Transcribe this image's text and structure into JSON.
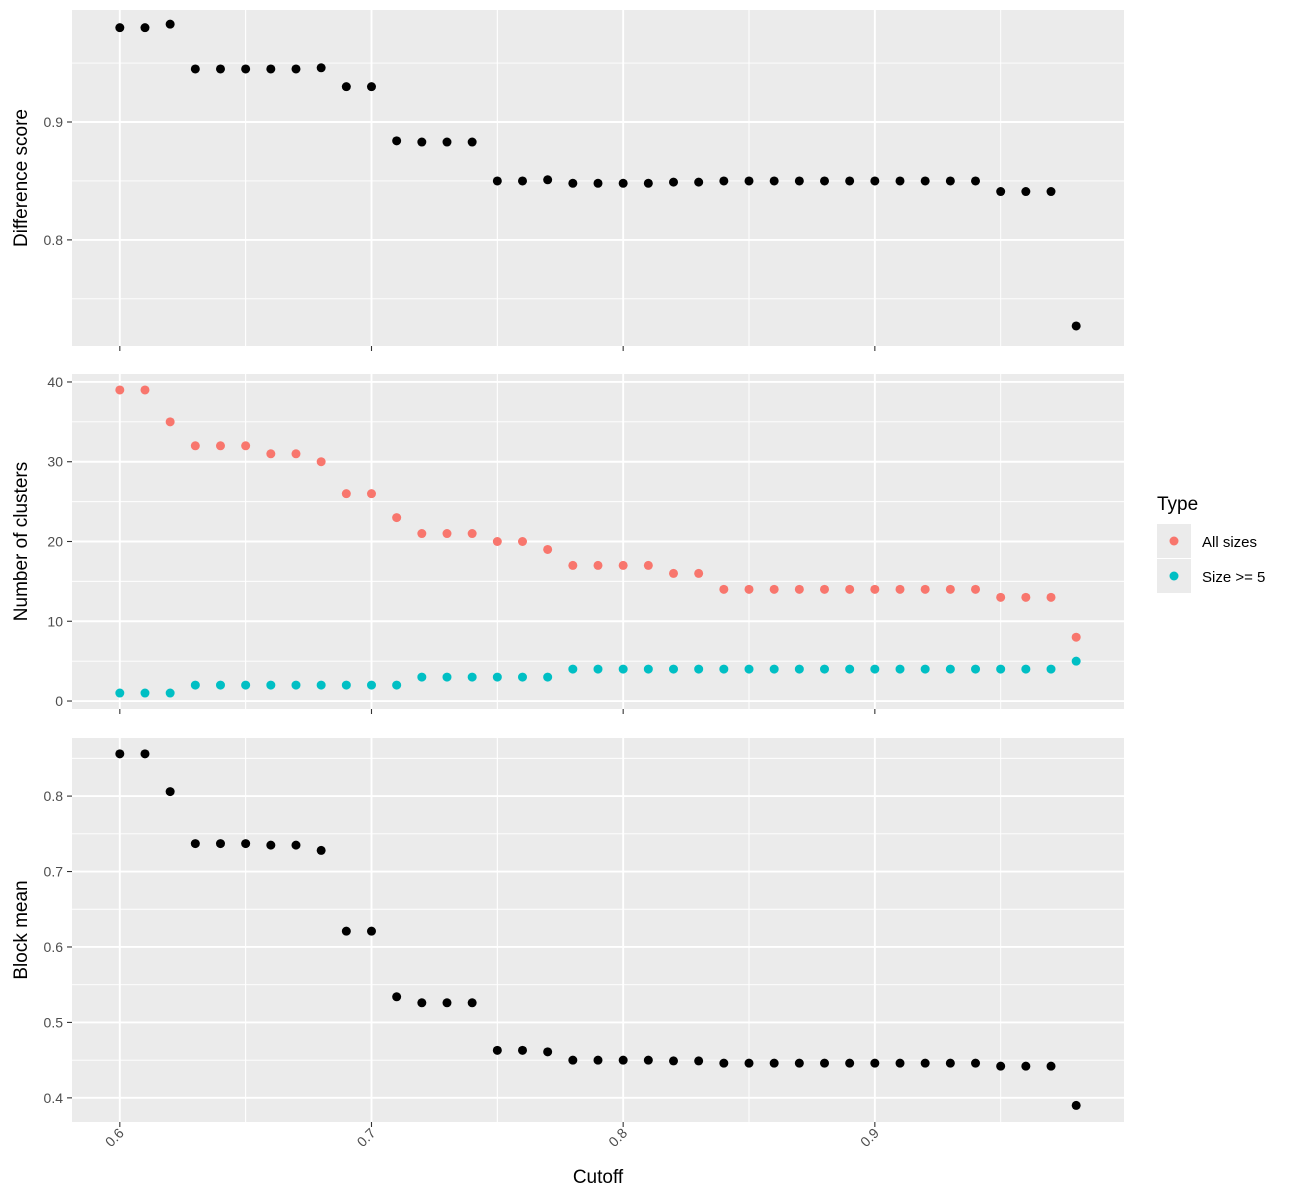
{
  "chart_data": {
    "type": "scatter",
    "x_axis": {
      "label": "Cutoff",
      "ticks": [
        0.6,
        0.7,
        0.8,
        0.9
      ],
      "tick_labels": [
        "0.6",
        "0.7",
        "0.8",
        "0.9"
      ],
      "range": [
        0.581,
        0.999
      ],
      "tick_label_rotation": "45 degrees"
    },
    "x": [
      0.6,
      0.61,
      0.62,
      0.63,
      0.64,
      0.65,
      0.66,
      0.67,
      0.68,
      0.69,
      0.7,
      0.71,
      0.72,
      0.73,
      0.74,
      0.75,
      0.76,
      0.77,
      0.78,
      0.79,
      0.8,
      0.81,
      0.82,
      0.83,
      0.84,
      0.85,
      0.86,
      0.87,
      0.88,
      0.89,
      0.9,
      0.91,
      0.92,
      0.93,
      0.94,
      0.95,
      0.96,
      0.97,
      0.98
    ],
    "grid": true,
    "background_color": "#ebebeb",
    "panels": [
      {
        "ylabel": "Difference score",
        "ylim": [
          0.71,
          0.995
        ],
        "y_ticks": [
          0.8,
          0.9
        ],
        "y_tick_labels": [
          "0.8",
          "0.9"
        ],
        "series": [
          {
            "color": "#000000",
            "values": [
              0.98,
              0.98,
              0.983,
              0.945,
              0.945,
              0.945,
              0.945,
              0.945,
              0.946,
              0.93,
              0.93,
              0.884,
              0.883,
              0.883,
              0.883,
              0.85,
              0.85,
              0.851,
              0.848,
              0.848,
              0.848,
              0.848,
              0.849,
              0.849,
              0.85,
              0.85,
              0.85,
              0.85,
              0.85,
              0.85,
              0.85,
              0.85,
              0.85,
              0.85,
              0.85,
              0.841,
              0.841,
              0.841,
              0.727
            ]
          }
        ]
      },
      {
        "ylabel": "Number of clusters",
        "ylim": [
          -1,
          41
        ],
        "y_ticks": [
          0,
          10,
          20,
          30,
          40
        ],
        "y_tick_labels": [
          "0",
          "10",
          "20",
          "30",
          "40"
        ],
        "series": [
          {
            "name": "All sizes",
            "color": "#f8766d",
            "values": [
              39,
              39,
              35,
              32,
              32,
              32,
              31,
              31,
              30,
              26,
              26,
              23,
              21,
              21,
              21,
              20,
              20,
              19,
              17,
              17,
              17,
              17,
              16,
              16,
              14,
              14,
              14,
              14,
              14,
              14,
              14,
              14,
              14,
              14,
              14,
              13,
              13,
              13,
              8
            ]
          },
          {
            "name": "Size >= 5",
            "color": "#00bfc4",
            "values": [
              1,
              1,
              1,
              2,
              2,
              2,
              2,
              2,
              2,
              2,
              2,
              2,
              3,
              3,
              3,
              3,
              3,
              3,
              4,
              4,
              4,
              4,
              4,
              4,
              4,
              4,
              4,
              4,
              4,
              4,
              4,
              4,
              4,
              4,
              4,
              4,
              4,
              4,
              5
            ]
          }
        ]
      },
      {
        "ylabel": "Block mean",
        "ylim": [
          0.368,
          0.877
        ],
        "y_ticks": [
          0.4,
          0.5,
          0.6,
          0.7,
          0.8
        ],
        "y_tick_labels": [
          "0.4",
          "0.5",
          "0.6",
          "0.7",
          "0.8"
        ],
        "series": [
          {
            "color": "#000000",
            "values": [
              0.856,
              0.856,
              0.806,
              0.737,
              0.737,
              0.737,
              0.735,
              0.735,
              0.728,
              0.621,
              0.621,
              0.534,
              0.526,
              0.526,
              0.526,
              0.463,
              0.463,
              0.461,
              0.45,
              0.45,
              0.45,
              0.45,
              0.449,
              0.449,
              0.446,
              0.446,
              0.446,
              0.446,
              0.446,
              0.446,
              0.446,
              0.446,
              0.446,
              0.446,
              0.446,
              0.442,
              0.442,
              0.442,
              0.39
            ]
          }
        ]
      }
    ],
    "legend": {
      "title": "Type",
      "position": "right",
      "entries": [
        {
          "label": "All sizes",
          "color": "#f8766d"
        },
        {
          "label": "Size >= 5",
          "color": "#00bfc4"
        }
      ]
    }
  }
}
